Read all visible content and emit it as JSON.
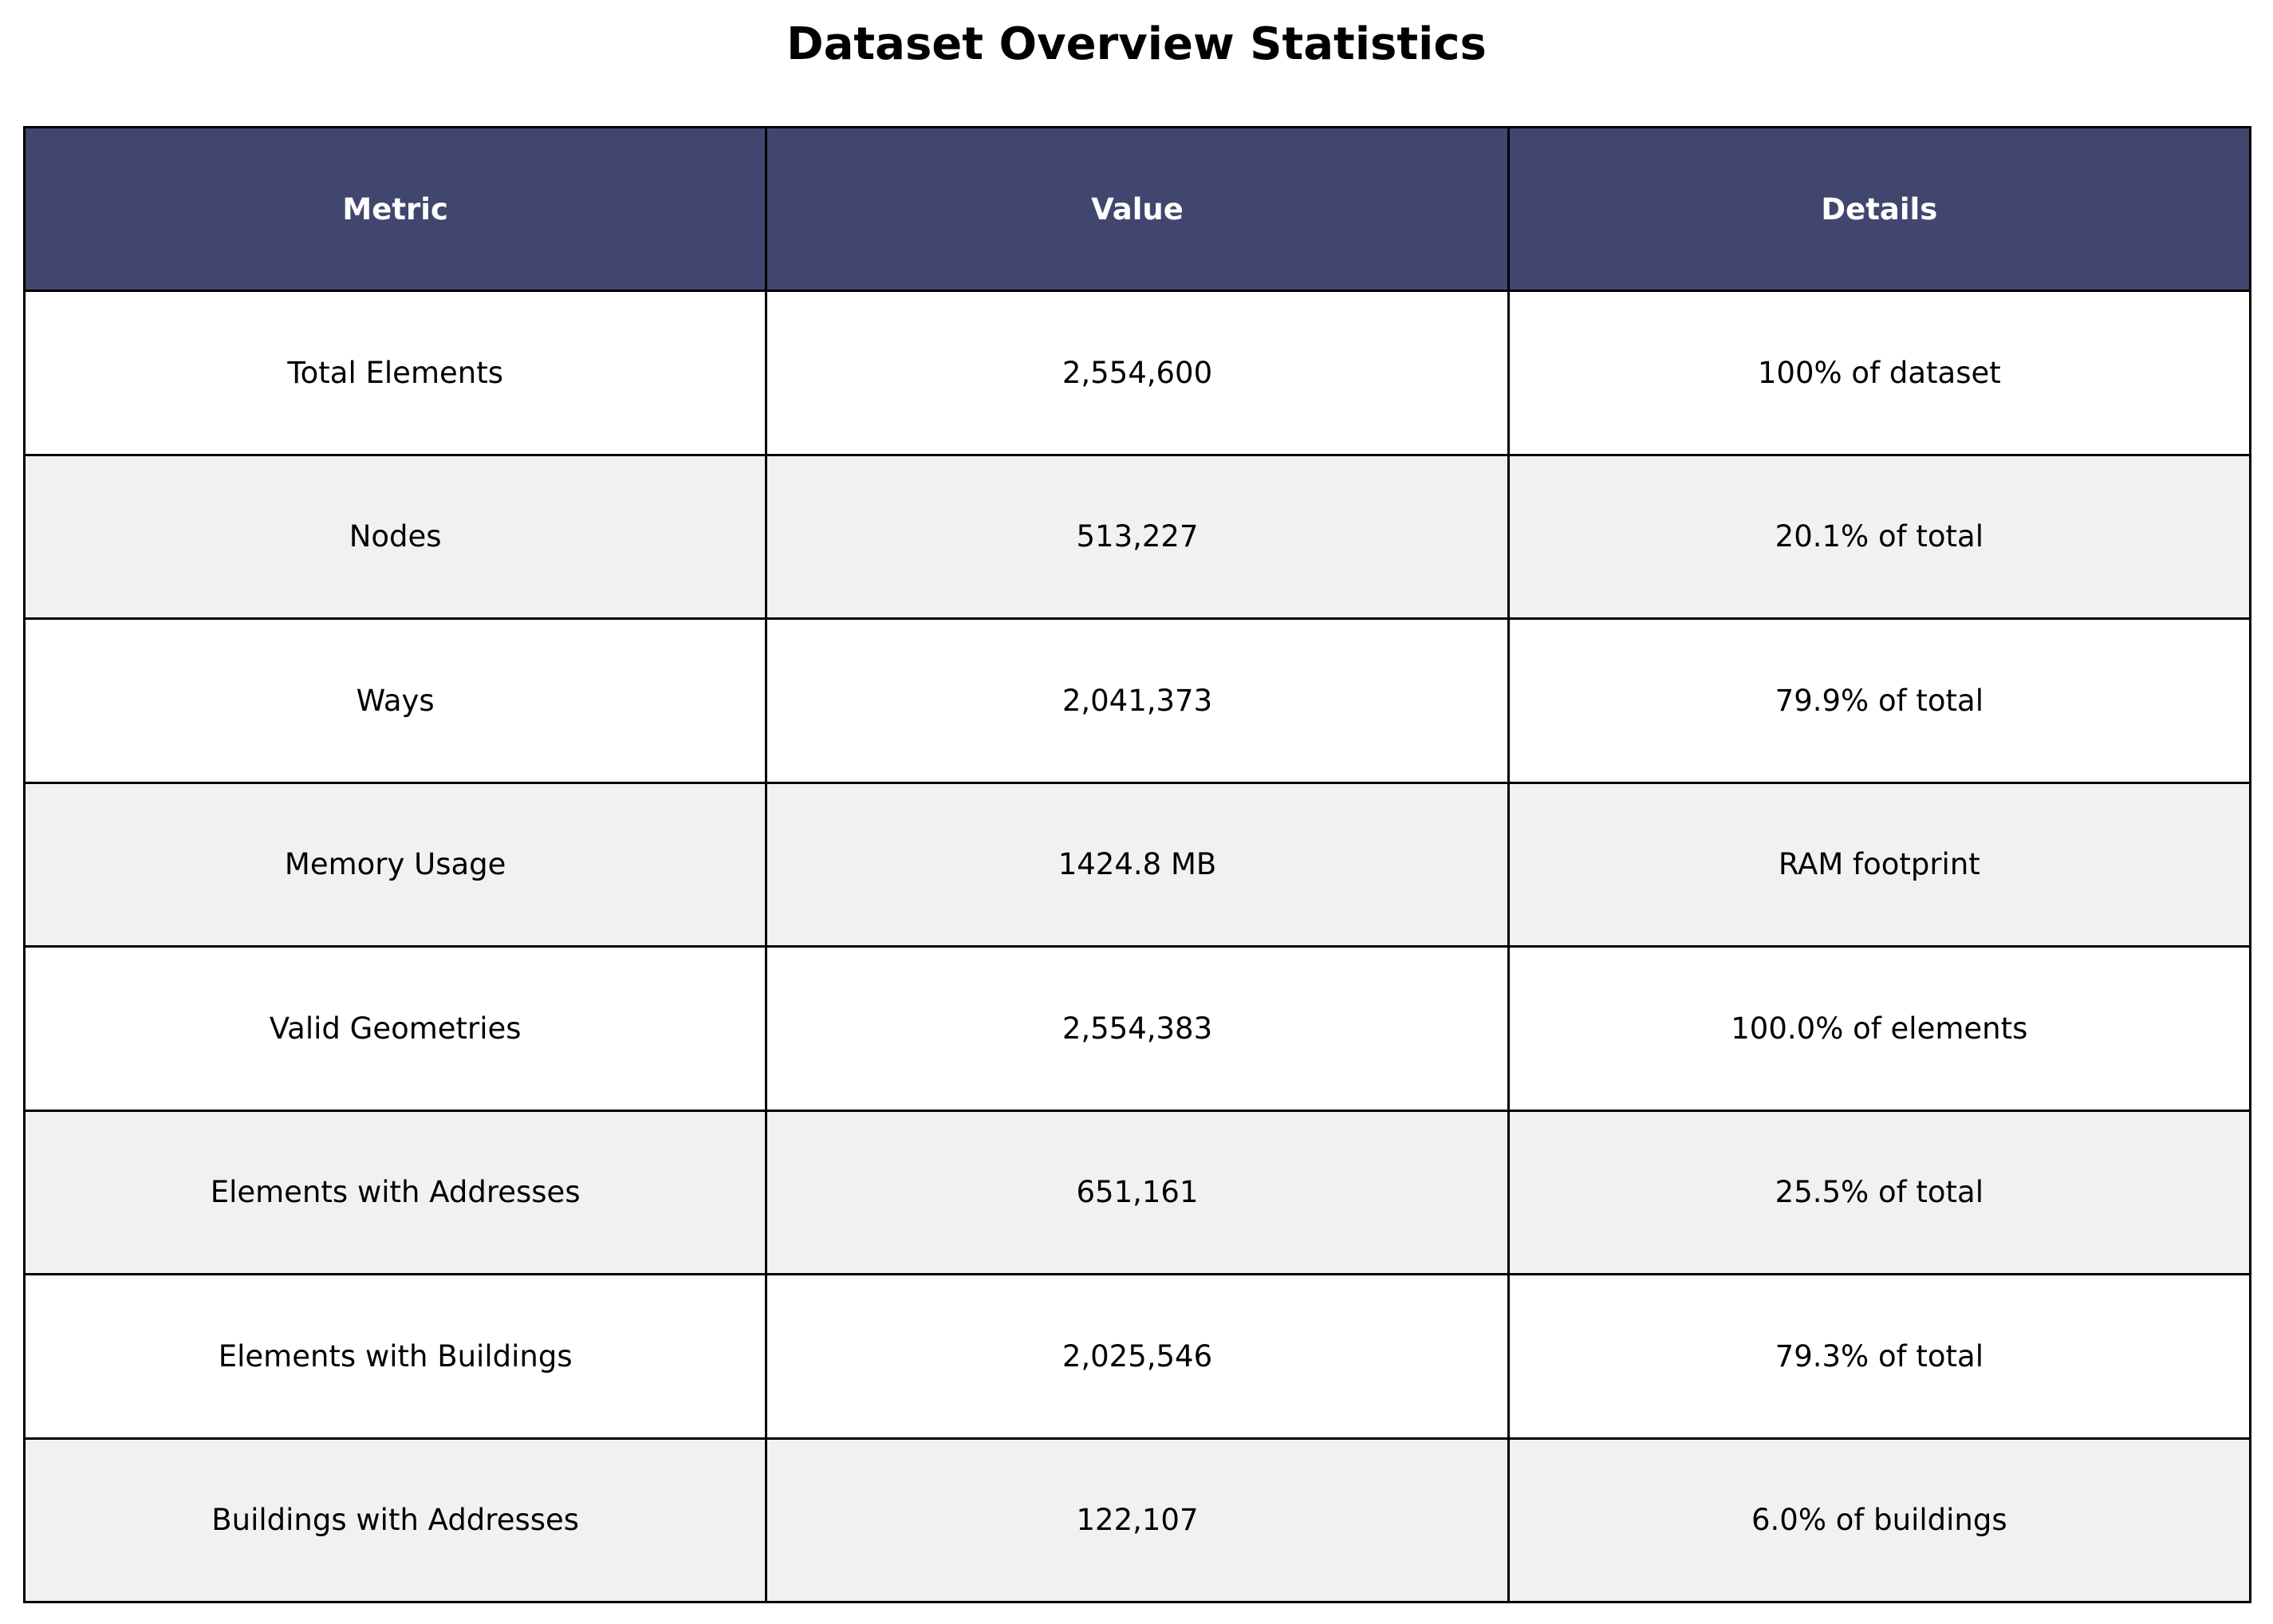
{
  "title": "Dataset Overview Statistics",
  "colors": {
    "header_bg": "#40466d",
    "header_text": "#ffffff",
    "row_alt_bg": "#f1f1f1",
    "row_bg": "#ffffff",
    "border": "#000000"
  },
  "chart_data": {
    "type": "table",
    "title": "Dataset Overview Statistics",
    "columns": [
      "Metric",
      "Value",
      "Details"
    ],
    "rows": [
      [
        "Total Elements",
        "2,554,600",
        "100% of dataset"
      ],
      [
        "Nodes",
        "513,227",
        "20.1% of total"
      ],
      [
        "Ways",
        "2,041,373",
        "79.9% of total"
      ],
      [
        "Memory Usage",
        "1424.8 MB",
        "RAM footprint"
      ],
      [
        "Valid Geometries",
        "2,554,383",
        "100.0% of elements"
      ],
      [
        "Elements with Addresses",
        "651,161",
        "25.5% of total"
      ],
      [
        "Elements with Buildings",
        "2,025,546",
        "79.3% of total"
      ],
      [
        "Buildings with Addresses",
        "122,107",
        "6.0% of buildings"
      ]
    ]
  }
}
